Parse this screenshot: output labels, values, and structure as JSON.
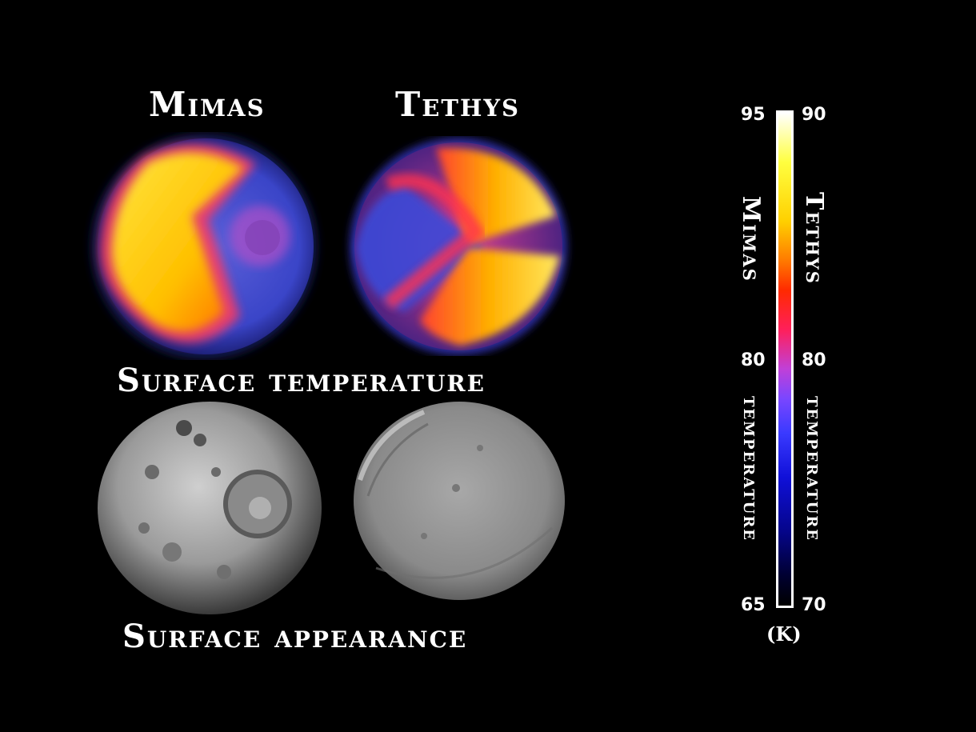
{
  "moons": {
    "mimas": "Mimas",
    "tethys": "Tethys"
  },
  "rows": {
    "temperature_title": "Surface temperature",
    "appearance_title": "Surface appearance"
  },
  "scale": {
    "mimas_max": "95",
    "mimas_mid": "80",
    "mimas_min": "65",
    "tethys_max": "90",
    "tethys_mid": "80",
    "tethys_min": "70",
    "mimas_label": "Mimas",
    "tethys_label": "Tethys",
    "temperature_word_left": "temperature",
    "temperature_word_right": "temperature",
    "unit": "(K)"
  },
  "colors": {
    "background": "#000000",
    "text": "#ffffff",
    "hot": "#ffff40",
    "warm": "#ff2a00",
    "mid": "#c040d8",
    "cold": "#1010d8"
  }
}
